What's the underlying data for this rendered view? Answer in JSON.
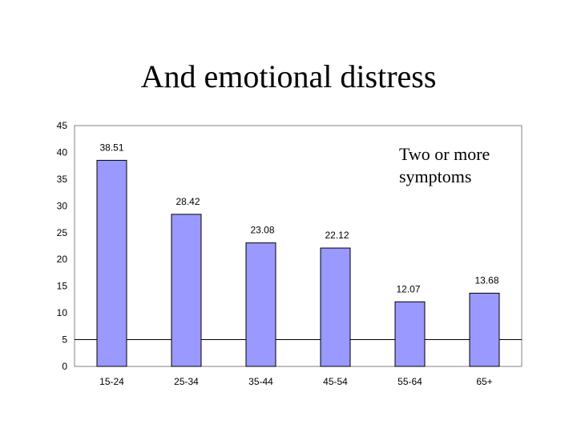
{
  "slide": {
    "title": "And emotional distress"
  },
  "chart_data": {
    "type": "bar",
    "title": "",
    "xlabel": "",
    "ylabel": "",
    "categories": [
      "15-24",
      "25-34",
      "35-44",
      "45-54",
      "55-64",
      "65+"
    ],
    "values": [
      38.51,
      28.42,
      23.08,
      22.12,
      12.07,
      13.68
    ],
    "data_labels": [
      "38.51",
      "28.42",
      "23.08",
      "22.12",
      "12.07",
      "13.68"
    ],
    "ylim": [
      0,
      45
    ],
    "yticks": [
      0,
      5,
      10,
      15,
      20,
      25,
      30,
      35,
      40,
      45
    ],
    "annotation": [
      "Two or more",
      "symptoms"
    ],
    "grid": false,
    "reference_line_at": 5,
    "bar_color": "#9999ff",
    "bar_edge_color": "#000000"
  }
}
